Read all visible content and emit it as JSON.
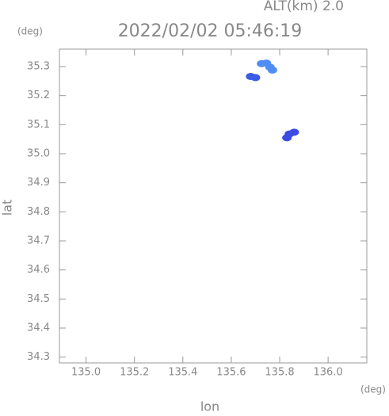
{
  "chart_data": {
    "type": "scatter",
    "title": "2022/02/02 05:46:19",
    "subtitle": "ALT(km) 2.0",
    "y_unit": "(deg)",
    "x_unit": "(deg)",
    "xlabel": "lon",
    "ylabel": "lat",
    "xlim": [
      134.89,
      136.16
    ],
    "ylim": [
      34.28,
      35.36
    ],
    "xticks": [
      {
        "value": 135.0,
        "label": "135.0"
      },
      135.2,
      135.4,
      135.6,
      135.8,
      {
        "value": 136.0,
        "label": "136.0"
      }
    ],
    "yticks": [
      34.3,
      34.4,
      34.5,
      34.6,
      34.7,
      34.8,
      34.9,
      {
        "value": 35.0,
        "label": "35.0"
      },
      35.1,
      35.2,
      35.3
    ],
    "series": [
      {
        "color": "#4f8ef5",
        "x": [
          135.725,
          135.745,
          135.76,
          135.77
        ],
        "values": [
          35.31,
          35.312,
          35.298,
          35.288
        ]
      },
      {
        "color": "#3a5ce8",
        "x": [
          135.68,
          135.7
        ],
        "values": [
          35.266,
          35.262
        ]
      },
      {
        "color": "#3c4be0",
        "x": [
          135.84,
          135.86,
          135.83
        ],
        "values": [
          35.068,
          35.074,
          35.055
        ]
      }
    ]
  }
}
